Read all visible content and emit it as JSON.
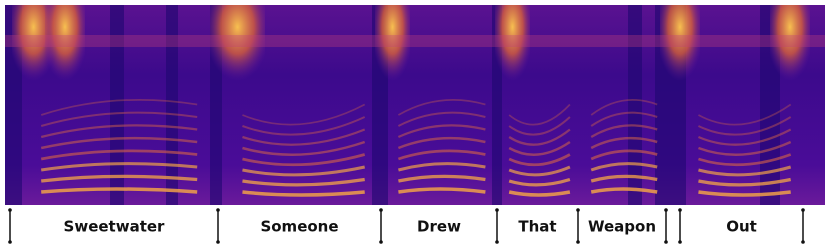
{
  "words": [
    "Sweetwater",
    "Someone",
    "Drew",
    "That",
    "Weapon",
    "Out"
  ]
}
